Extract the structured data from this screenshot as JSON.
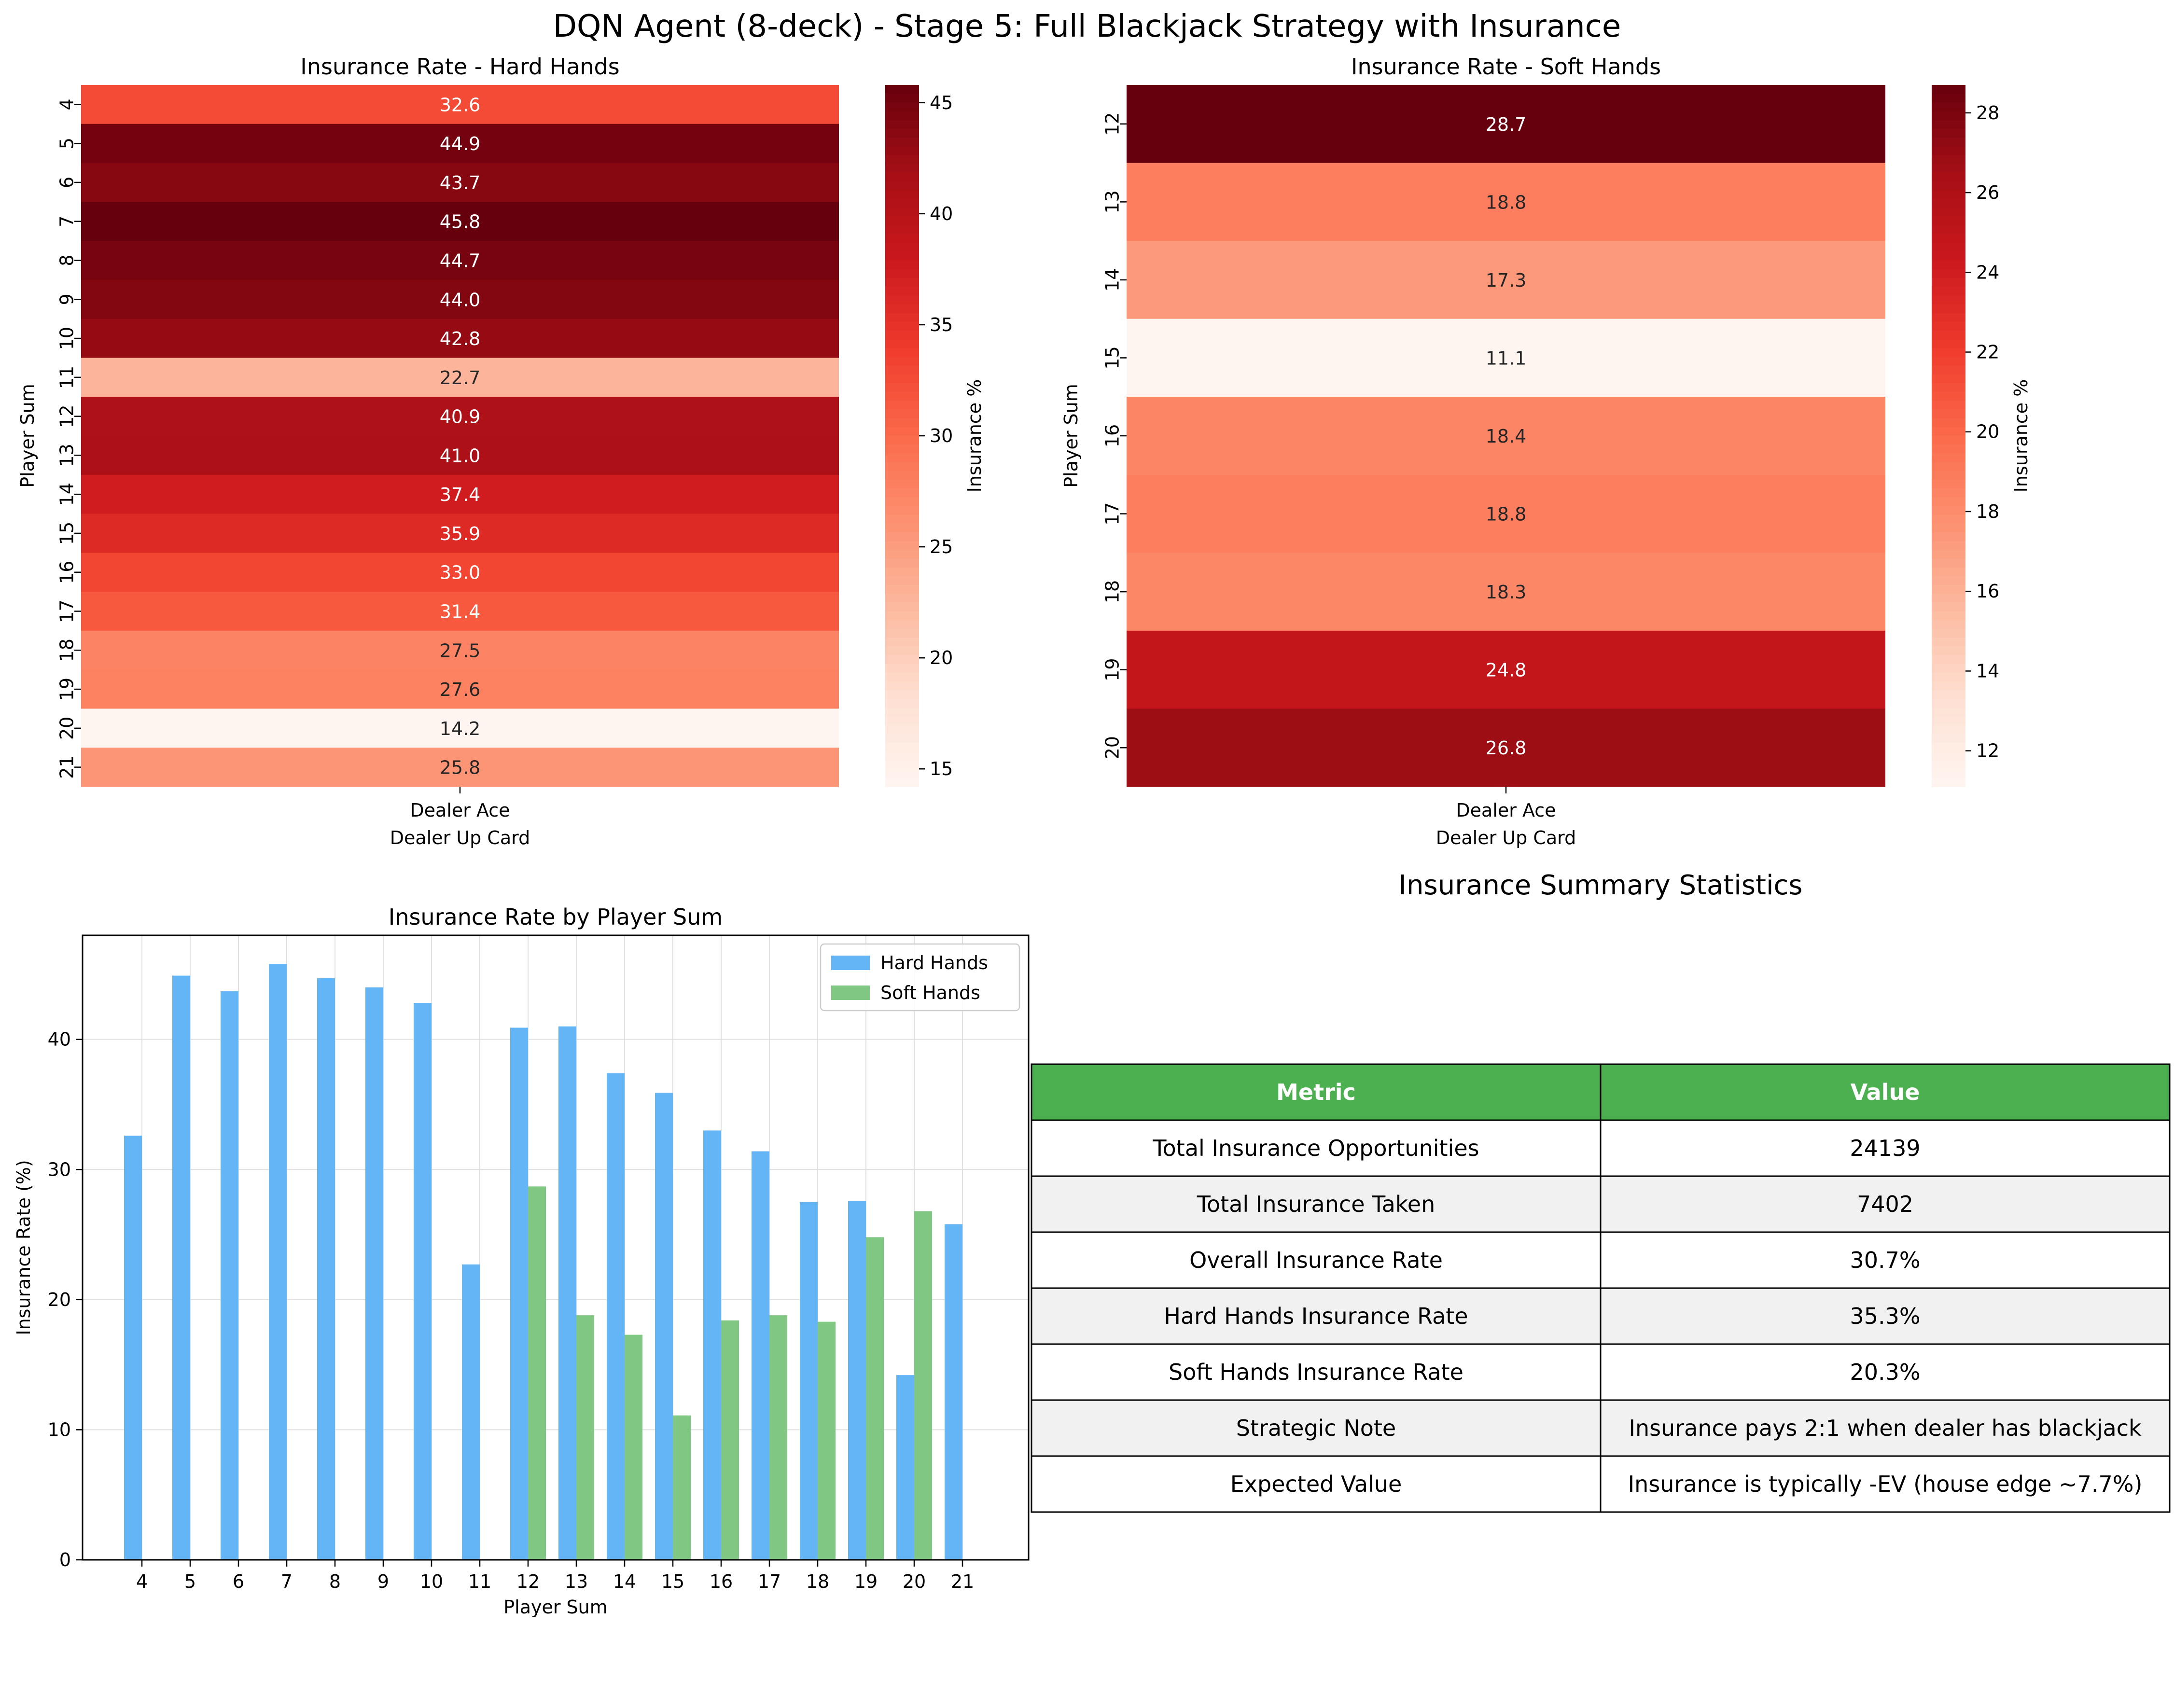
{
  "figure_title": "DQN Agent (8-deck) - Stage 5: Full Blackjack Strategy with Insurance",
  "colors": {
    "hard": "#64b5f6",
    "soft": "#81c784",
    "table_header": "#4caf50",
    "table_stripe": "#f1f1f1",
    "grid": "#e0e0e0"
  },
  "chart_data": [
    {
      "type": "heatmap",
      "title": "Insurance Rate - Hard Hands",
      "xlabel": "Dealer Up Card",
      "ylabel": "Player Sum",
      "colorbar_label": "Insurance %",
      "colormap": "Reds",
      "columns": [
        "Dealer Ace"
      ],
      "rows": [
        "4",
        "5",
        "6",
        "7",
        "8",
        "9",
        "10",
        "11",
        "12",
        "13",
        "14",
        "15",
        "16",
        "17",
        "18",
        "19",
        "20",
        "21"
      ],
      "values": [
        32.6,
        44.9,
        43.7,
        45.8,
        44.7,
        44.0,
        42.8,
        22.7,
        40.9,
        41.0,
        37.4,
        35.9,
        33.0,
        31.4,
        27.5,
        27.6,
        14.2,
        25.8
      ],
      "cell_labels": [
        "32.6",
        "44.9",
        "43.7",
        "45.8",
        "44.7",
        "44.0",
        "42.8",
        "22.7",
        "40.9",
        "41.0",
        "37.4",
        "35.9",
        "33.0",
        "31.4",
        "27.5",
        "27.6",
        "14.2",
        "25.8"
      ],
      "vmin": 14.2,
      "vmax": 45.8,
      "colorbar_ticks": [
        "15",
        "20",
        "25",
        "30",
        "35",
        "40",
        "45"
      ]
    },
    {
      "type": "heatmap",
      "title": "Insurance Rate - Soft Hands",
      "xlabel": "Dealer Up Card",
      "ylabel": "Player Sum",
      "colorbar_label": "Insurance %",
      "colormap": "Reds",
      "columns": [
        "Dealer Ace"
      ],
      "rows": [
        "12",
        "13",
        "14",
        "15",
        "16",
        "17",
        "18",
        "19",
        "20"
      ],
      "values": [
        28.7,
        18.8,
        17.3,
        11.1,
        18.4,
        18.8,
        18.3,
        24.8,
        26.8
      ],
      "cell_labels": [
        "28.7",
        "18.8",
        "17.3",
        "11.1",
        "18.4",
        "18.8",
        "18.3",
        "24.8",
        "26.8"
      ],
      "vmin": 11.1,
      "vmax": 28.7,
      "colorbar_ticks": [
        "12",
        "14",
        "16",
        "18",
        "20",
        "22",
        "24",
        "26",
        "28"
      ]
    },
    {
      "type": "bar",
      "title": "Insurance Rate by Player Sum",
      "xlabel": "Player Sum",
      "ylabel": "Insurance Rate (%)",
      "categories": [
        "4",
        "5",
        "6",
        "7",
        "8",
        "9",
        "10",
        "11",
        "12",
        "13",
        "14",
        "15",
        "16",
        "17",
        "18",
        "19",
        "20",
        "21"
      ],
      "series": [
        {
          "name": "Hard Hands",
          "values": [
            32.6,
            44.9,
            43.7,
            45.8,
            44.7,
            44.0,
            42.8,
            22.7,
            40.9,
            41.0,
            37.4,
            35.9,
            33.0,
            31.4,
            27.5,
            27.6,
            14.2,
            25.8
          ]
        },
        {
          "name": "Soft Hands",
          "values": [
            null,
            null,
            null,
            null,
            null,
            null,
            null,
            null,
            28.7,
            18.8,
            17.3,
            11.1,
            18.4,
            18.8,
            18.3,
            24.8,
            26.8,
            null
          ]
        }
      ],
      "ylim": [
        0,
        48
      ],
      "yticks": [
        "0",
        "10",
        "20",
        "30",
        "40"
      ],
      "grid": true,
      "legend": "top-right"
    },
    {
      "type": "table",
      "title": "Insurance Summary Statistics",
      "columns": [
        "Metric",
        "Value"
      ],
      "rows": [
        [
          "Total Insurance Opportunities",
          "24139"
        ],
        [
          "Total Insurance Taken",
          "7402"
        ],
        [
          "Overall Insurance Rate",
          "30.7%"
        ],
        [
          "Hard Hands Insurance Rate",
          "35.3%"
        ],
        [
          "Soft Hands Insurance Rate",
          "20.3%"
        ],
        [
          "Strategic Note",
          "Insurance pays 2:1 when dealer has blackjack"
        ],
        [
          "Expected Value",
          "Insurance is typically -EV (house edge ~7.7%)"
        ]
      ]
    }
  ]
}
